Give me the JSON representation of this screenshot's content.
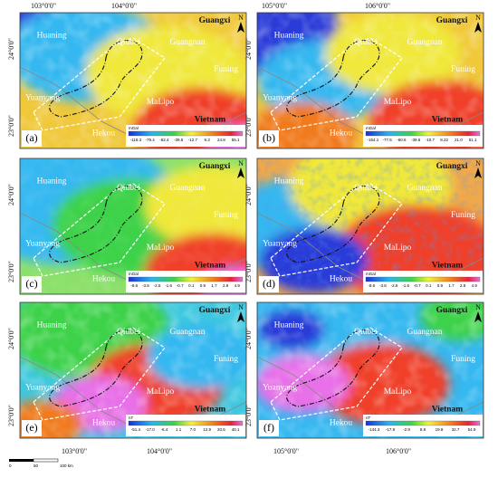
{
  "lon_labels": [
    "103°0'0\"",
    "104°0'0\"",
    "105°0'0\"",
    "106°0'0\""
  ],
  "lat_labels": [
    "24°0'0\"",
    "23°0'0\""
  ],
  "north": "N",
  "places": [
    {
      "name": "Huaning",
      "bold": false
    },
    {
      "name": "Qiubei",
      "bold": false
    },
    {
      "name": "Guangxi",
      "bold": true
    },
    {
      "name": "Guangnan",
      "bold": false
    },
    {
      "name": "Funing",
      "bold": false
    },
    {
      "name": "Yuanyang",
      "bold": false
    },
    {
      "name": "MaLipo",
      "bold": false
    },
    {
      "name": "Vietnam",
      "bold": true
    },
    {
      "name": "Hekou",
      "bold": false
    }
  ],
  "panels": [
    {
      "label": "(a)",
      "unit": "mGal",
      "ticks": [
        "-119.3",
        "-79.4",
        "-62.4",
        "-39.5",
        "-12.7",
        "9.3",
        "24.8",
        "55.1"
      ]
    },
    {
      "label": "(b)",
      "unit": "mGal",
      "ticks": [
        "-154.1",
        "-77.5",
        "-60.6",
        "-39.6",
        "-10.7",
        "8.22",
        "21.0",
        "51.1"
      ]
    },
    {
      "label": "(c)",
      "unit": "mGal",
      "ticks": [
        "-8.6",
        "-3.8",
        "-2.5",
        "-1.6",
        "-0.7",
        "0.1",
        "0.9",
        "1.7",
        "2.9",
        "4.9"
      ]
    },
    {
      "label": "(d)",
      "unit": "mGal",
      "ticks": [
        "-8.6",
        "-3.8",
        "-2.5",
        "-1.6",
        "-0.7",
        "0.1",
        "0.9",
        "1.7",
        "2.9",
        "4.9"
      ]
    },
    {
      "label": "(e)",
      "unit": "nT",
      "ticks": [
        "-51.4",
        "-17.0",
        "-6.4",
        "1.1",
        "7.0",
        "12.9",
        "20.5",
        "40.1"
      ]
    },
    {
      "label": "(f)",
      "unit": "nT",
      "ticks": [
        "-144.3",
        "-17.9",
        "-2.9",
        "8.8",
        "19.8",
        "32.7",
        "54.9"
      ]
    }
  ],
  "scale_bar": [
    "0",
    "50",
    "100 km"
  ]
}
